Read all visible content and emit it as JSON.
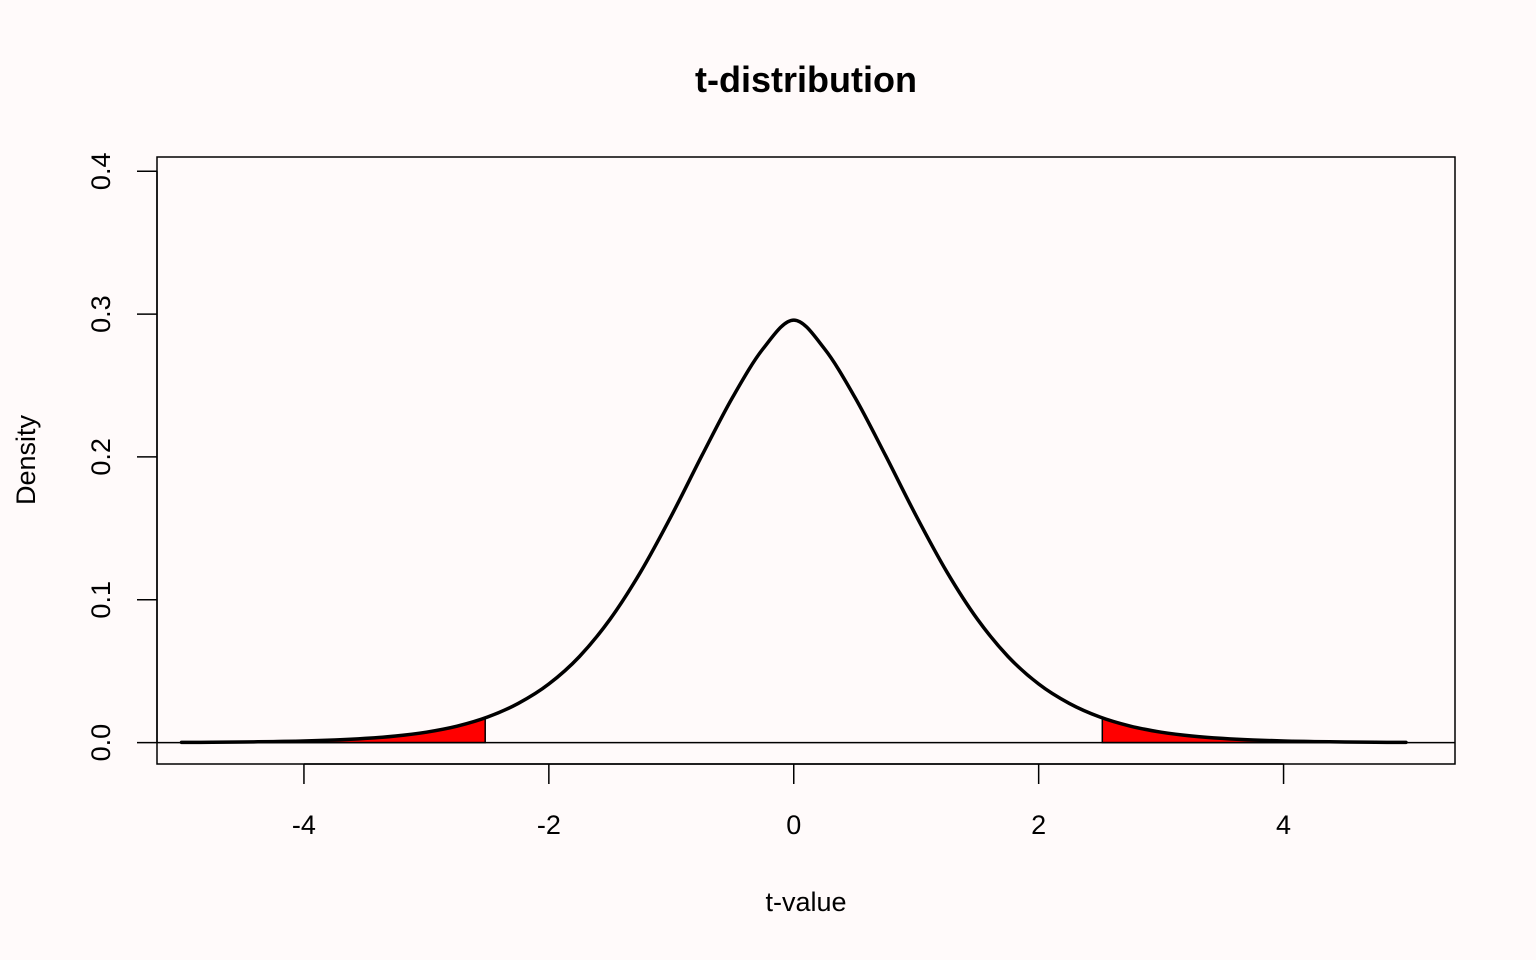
{
  "chart_data": {
    "type": "line",
    "title": "t-distribution",
    "xlabel": "t-value",
    "ylabel": "Density",
    "xlim": [
      -5.2,
      5.4
    ],
    "ylim": [
      -0.015,
      0.41
    ],
    "x_ticks": [
      -4,
      -2,
      0,
      2,
      4
    ],
    "x_tick_labels": [
      "-4",
      "-2",
      "0",
      "2",
      "4"
    ],
    "y_ticks": [
      0.0,
      0.1,
      0.2,
      0.3,
      0.4
    ],
    "y_tick_labels": [
      "0.0",
      "0.1",
      "0.2",
      "0.3",
      "0.4"
    ],
    "grid": false,
    "legend": "none",
    "baseline": 0,
    "series": [
      {
        "x": [
          -5.0,
          -4.75,
          -4.5,
          -4.25,
          -4.0,
          -3.75,
          -3.5,
          -3.25,
          -3.0,
          -2.75,
          -2.5,
          -2.25,
          -2.0,
          -1.75,
          -1.5,
          -1.25,
          -1.0,
          -0.75,
          -0.5,
          -0.25,
          0.0,
          0.25,
          0.5,
          0.75,
          1.0,
          1.25,
          1.5,
          1.75,
          2.0,
          2.25,
          2.5,
          2.75,
          3.0,
          3.25,
          3.5,
          3.75,
          4.0,
          4.25,
          4.5,
          4.75,
          5.0
        ],
        "y": [
          0.0001,
          0.0002,
          0.0004,
          0.0007,
          0.0011,
          0.0018,
          0.0029,
          0.0046,
          0.0073,
          0.0115,
          0.0179,
          0.0274,
          0.041,
          0.0603,
          0.0864,
          0.1196,
          0.1587,
          0.2009,
          0.2416,
          0.2758,
          0.2958,
          0.2758,
          0.2416,
          0.2009,
          0.1587,
          0.1196,
          0.0864,
          0.0603,
          0.041,
          0.0274,
          0.0179,
          0.0115,
          0.0073,
          0.0046,
          0.0029,
          0.0018,
          0.0011,
          0.0007,
          0.0004,
          0.0002,
          0.0001
        ]
      }
    ],
    "shaded_regions": [
      {
        "from": -5.0,
        "to": -2.52,
        "color": "#ff0000"
      },
      {
        "from": 2.52,
        "to": 5.0,
        "color": "#ff0000"
      }
    ],
    "colors": {
      "background": "#fffafa",
      "line": "#000000",
      "shade": "#ff0000"
    }
  }
}
